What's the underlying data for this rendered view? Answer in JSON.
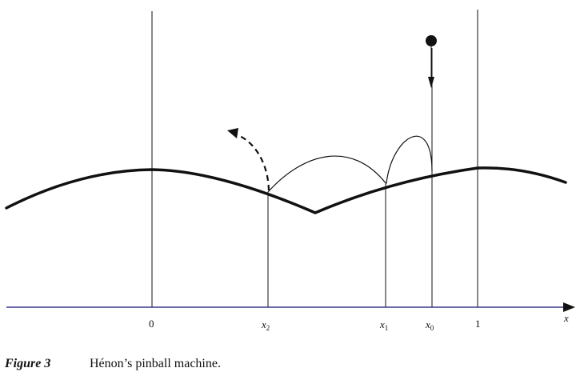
{
  "figure": {
    "axis_labels": {
      "zero": "0",
      "x2": "x",
      "x2_sub": "2",
      "x1": "x",
      "x1_sub": "1",
      "x0": "x",
      "x0_sub": "0",
      "one": "1",
      "x": "x"
    },
    "colors": {
      "ink": "#111111",
      "axis": "#3a3a8c"
    }
  },
  "caption": {
    "label": "Figure 3",
    "text": "Hénon’s pinball machine."
  }
}
